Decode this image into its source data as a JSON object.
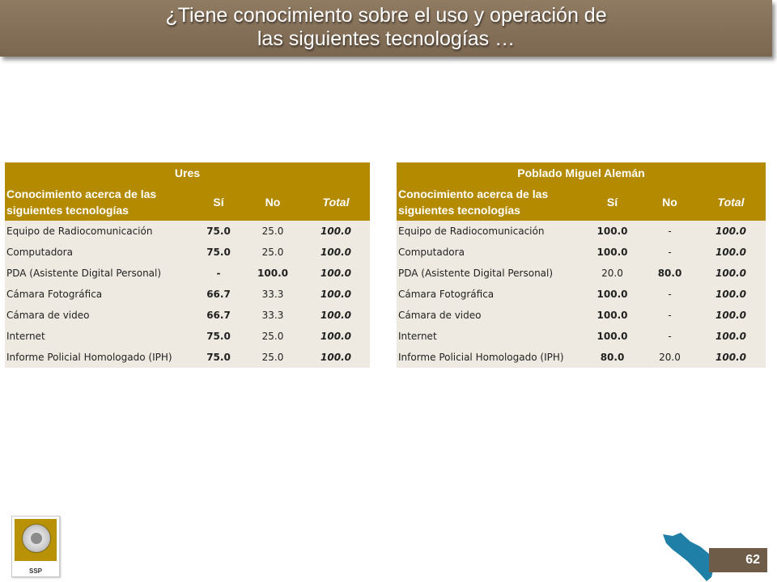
{
  "header": {
    "title_line1": "¿Tiene conocimiento sobre el uso y operación de",
    "title_line2": "las siguientes tecnologías …"
  },
  "tables": [
    {
      "group_title": "Ures",
      "columns": {
        "concept": "Conocimiento acerca de las siguientes tecnologías",
        "si": "Sí",
        "no": "No",
        "total": "Total"
      },
      "rows": [
        {
          "label": "Equipo de Radiocomunicación",
          "si": "75.0",
          "no": "25.0",
          "total": "100.0"
        },
        {
          "label": "Computadora",
          "si": "75.0",
          "no": "25.0",
          "total": "100.0"
        },
        {
          "label": "PDA (Asistente Digital Personal)",
          "si": "-",
          "no": "100.0",
          "total": "100.0"
        },
        {
          "label": "Cámara Fotográfica",
          "si": "66.7",
          "no": "33.3",
          "total": "100.0"
        },
        {
          "label": "Cámara de video",
          "si": "66.7",
          "no": "33.3",
          "total": "100.0"
        },
        {
          "label": "Internet",
          "si": "75.0",
          "no": "25.0",
          "total": "100.0"
        },
        {
          "label": "Informe Policial Homologado (IPH)",
          "si": "75.0",
          "no": "25.0",
          "total": "100.0"
        }
      ]
    },
    {
      "group_title": "Poblado Miguel Alemán",
      "columns": {
        "concept": "Conocimiento acerca de las siguientes tecnologías",
        "si": "Sí",
        "no": "No",
        "total": "Total"
      },
      "rows": [
        {
          "label": "Equipo de Radiocomunicación",
          "si": "100.0",
          "no": "-",
          "total": "100.0"
        },
        {
          "label": "Computadora",
          "si": "100.0",
          "no": "-",
          "total": "100.0"
        },
        {
          "label": "PDA (Asistente Digital Personal)",
          "si": "20.0",
          "no": "80.0",
          "total": "100.0"
        },
        {
          "label": "Cámara Fotográfica",
          "si": "100.0",
          "no": "-",
          "total": "100.0"
        },
        {
          "label": "Cámara de video",
          "si": "100.0",
          "no": "-",
          "total": "100.0"
        },
        {
          "label": "Internet",
          "si": "100.0",
          "no": "-",
          "total": "100.0"
        },
        {
          "label": "Informe Policial Homologado (IPH)",
          "si": "80.0",
          "no": "20.0",
          "total": "100.0"
        }
      ]
    }
  ],
  "footer": {
    "logo_text": "SSP",
    "page_number": "62",
    "map_color": "#1f7fa6",
    "page_box_color": "#6e5c49"
  }
}
